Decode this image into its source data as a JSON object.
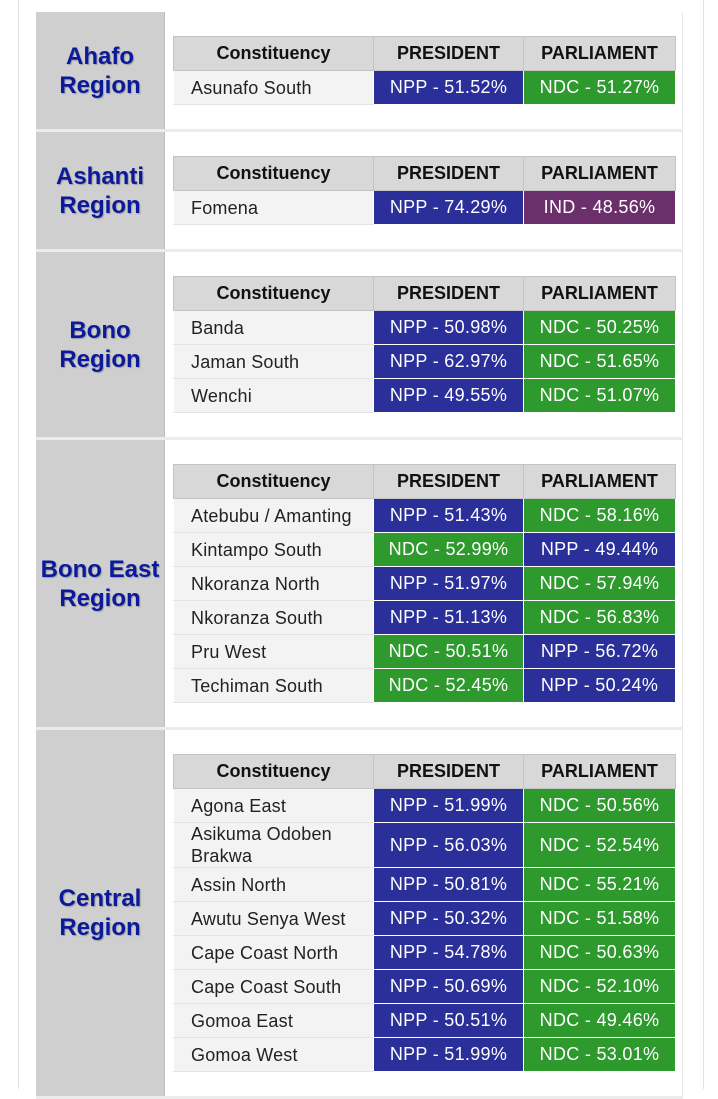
{
  "headers": {
    "constituency": "Constituency",
    "president": "PRESIDENT",
    "parliament": "PARLIAMENT"
  },
  "colors": {
    "NPP": "#2b2f9a",
    "NDC": "#2e9a2e",
    "IND": "#6b2f6b",
    "region_text": "#0a1a9a",
    "region_bg": "#cfcfcf"
  },
  "regions": [
    {
      "name": "Ahafo\nRegion",
      "rows": [
        {
          "constituency": "Asunafo South",
          "president": "NPP - 51.52%",
          "president_party": "NPP",
          "parliament": "NDC - 51.27%",
          "parliament_party": "NDC"
        }
      ]
    },
    {
      "name": "Ashanti\nRegion",
      "rows": [
        {
          "constituency": "Fomena",
          "president": "NPP - 74.29%",
          "president_party": "NPP",
          "parliament": "IND - 48.56%",
          "parliament_party": "IND"
        }
      ]
    },
    {
      "name": "Bono\nRegion",
      "rows": [
        {
          "constituency": "Banda",
          "president": "NPP - 50.98%",
          "president_party": "NPP",
          "parliament": "NDC - 50.25%",
          "parliament_party": "NDC"
        },
        {
          "constituency": "Jaman South",
          "president": "NPP - 62.97%",
          "president_party": "NPP",
          "parliament": "NDC - 51.65%",
          "parliament_party": "NDC"
        },
        {
          "constituency": "Wenchi",
          "president": "NPP - 49.55%",
          "president_party": "NPP",
          "parliament": "NDC - 51.07%",
          "parliament_party": "NDC"
        }
      ]
    },
    {
      "name": "Bono East\nRegion",
      "rows": [
        {
          "constituency": "Atebubu / Amanting",
          "president": "NPP - 51.43%",
          "president_party": "NPP",
          "parliament": "NDC - 58.16%",
          "parliament_party": "NDC"
        },
        {
          "constituency": "Kintampo South",
          "president": "NDC - 52.99%",
          "president_party": "NDC",
          "parliament": "NPP - 49.44%",
          "parliament_party": "NPP"
        },
        {
          "constituency": "Nkoranza North",
          "president": "NPP - 51.97%",
          "president_party": "NPP",
          "parliament": "NDC - 57.94%",
          "parliament_party": "NDC"
        },
        {
          "constituency": "Nkoranza South",
          "president": "NPP - 51.13%",
          "president_party": "NPP",
          "parliament": "NDC - 56.83%",
          "parliament_party": "NDC"
        },
        {
          "constituency": "Pru West",
          "president": "NDC - 50.51%",
          "president_party": "NDC",
          "parliament": "NPP - 56.72%",
          "parliament_party": "NPP"
        },
        {
          "constituency": "Techiman South",
          "president": "NDC - 52.45%",
          "president_party": "NDC",
          "parliament": "NPP - 50.24%",
          "parliament_party": "NPP"
        }
      ]
    },
    {
      "name": "Central\nRegion",
      "rows": [
        {
          "constituency": "Agona East",
          "president": "NPP - 51.99%",
          "president_party": "NPP",
          "parliament": "NDC - 50.56%",
          "parliament_party": "NDC"
        },
        {
          "constituency": "Asikuma Odoben Brakwa",
          "president": "NPP - 56.03%",
          "president_party": "NPP",
          "parliament": "NDC - 52.54%",
          "parliament_party": "NDC"
        },
        {
          "constituency": "Assin North",
          "president": "NPP - 50.81%",
          "president_party": "NPP",
          "parliament": "NDC - 55.21%",
          "parliament_party": "NDC"
        },
        {
          "constituency": "Awutu Senya West",
          "president": "NPP - 50.32%",
          "president_party": "NPP",
          "parliament": "NDC - 51.58%",
          "parliament_party": "NDC"
        },
        {
          "constituency": "Cape Coast North",
          "president": "NPP - 54.78%",
          "president_party": "NPP",
          "parliament": "NDC - 50.63%",
          "parliament_party": "NDC"
        },
        {
          "constituency": "Cape Coast South",
          "president": "NPP - 50.69%",
          "president_party": "NPP",
          "parliament": "NDC - 52.10%",
          "parliament_party": "NDC"
        },
        {
          "constituency": "Gomoa East",
          "president": "NPP - 50.51%",
          "president_party": "NPP",
          "parliament": "NDC - 49.46%",
          "parliament_party": "NDC"
        },
        {
          "constituency": "Gomoa West",
          "president": "NPP - 51.99%",
          "president_party": "NPP",
          "parliament": "NDC - 53.01%",
          "parliament_party": "NDC"
        }
      ]
    }
  ]
}
